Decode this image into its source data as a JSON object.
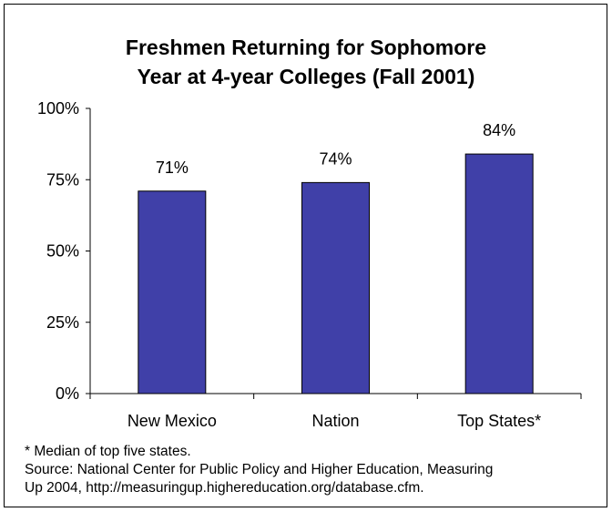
{
  "chart_data": {
    "type": "bar",
    "title_lines": [
      "Freshmen Returning for Sophomore",
      "Year at 4-year Colleges (Fall 2001)"
    ],
    "categories": [
      "New Mexico",
      "Nation",
      "Top States*"
    ],
    "values": [
      71,
      74,
      84
    ],
    "value_labels": [
      "71%",
      "74%",
      "84%"
    ],
    "ylim": [
      0,
      100
    ],
    "yticks": [
      0,
      25,
      50,
      75,
      100
    ],
    "ytick_labels": [
      "0%",
      "25%",
      "50%",
      "75%",
      "100%"
    ],
    "bar_color": "#4040a8",
    "grid": false,
    "legend": "none"
  },
  "footnotes": [
    "* Median of top five states.",
    "Source: National Center for Public Policy and Higher Education, Measuring",
    "Up 2004, http://measuringup.highereducation.org/database.cfm."
  ]
}
